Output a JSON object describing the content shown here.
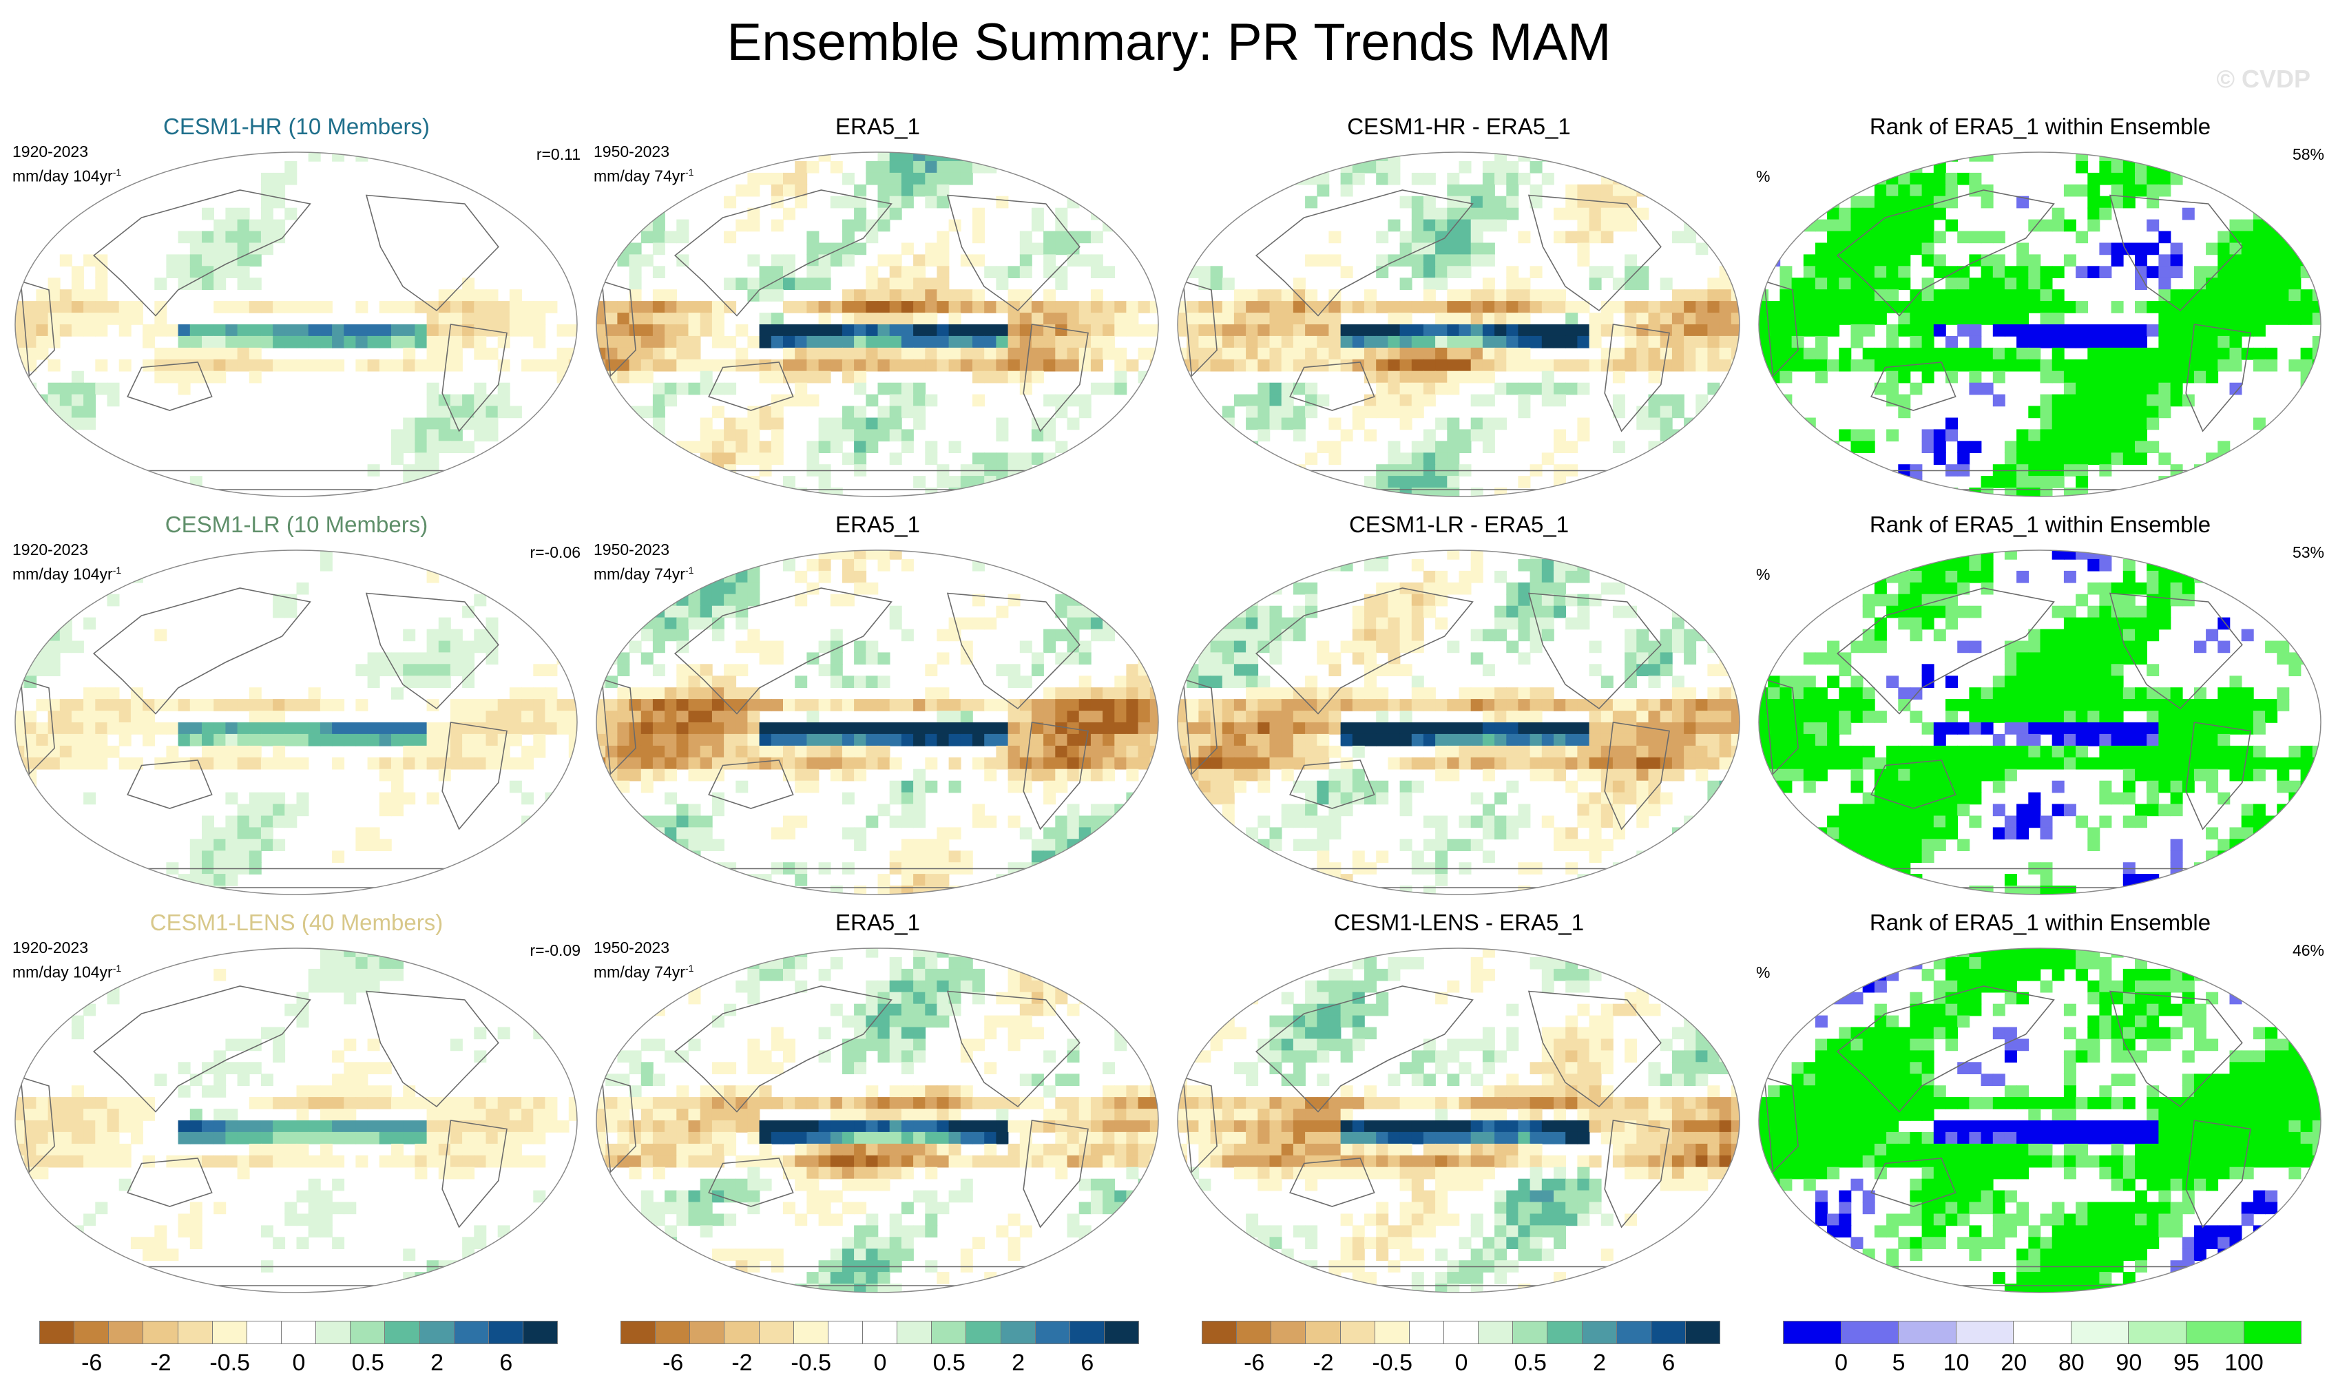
{
  "title": "Ensemble Summary: PR Trends MAM",
  "watermark": "© CVDP",
  "palettes": {
    "trend": [
      "#a65f1f",
      "#c4843c",
      "#d8a463",
      "#ecc98a",
      "#f5dfa9",
      "#fdf6cc",
      "#ffffff",
      "#ffffff",
      "#dcf5da",
      "#a6e3b5",
      "#5fbd9d",
      "#4d9aa4",
      "#2d72a6",
      "#0f4f8a",
      "#0a3453"
    ],
    "rank": [
      "#0000ee",
      "#6f6fee",
      "#b4b4f2",
      "#e2e2fa",
      "#ffffff",
      "#e6fbe6",
      "#b8f5b8",
      "#7af07a",
      "#00ee00"
    ]
  },
  "colorbars": [
    {
      "type": "trend",
      "labels": [
        "-6",
        "-2",
        "-0.5",
        "0",
        "0.5",
        "2",
        "6"
      ]
    },
    {
      "type": "trend",
      "labels": [
        "-6",
        "-2",
        "-0.5",
        "0",
        "0.5",
        "2",
        "6"
      ]
    },
    {
      "type": "trend",
      "labels": [
        "-6",
        "-2",
        "-0.5",
        "0",
        "0.5",
        "2",
        "6"
      ]
    },
    {
      "type": "rank",
      "labels": [
        "0",
        "5",
        "10",
        "20",
        "80",
        "90",
        "95",
        "100"
      ]
    }
  ],
  "rows": [
    {
      "ensemble": {
        "title": "CESM1-HR (10 Members)",
        "color": "#1f6f8b",
        "period": "1920-2023",
        "units": "mm/day 104yr",
        "unit_exp": "-1",
        "corr": "r=0.11"
      },
      "obs": {
        "title": "ERA5_1",
        "period": "1950-2023",
        "units": "mm/day 74yr",
        "unit_exp": "-1"
      },
      "diff": {
        "title": "CESM1-HR - ERA5_1"
      },
      "rank": {
        "title": "Rank of ERA5_1 within Ensemble",
        "unit": "%",
        "pct": "58%"
      }
    },
    {
      "ensemble": {
        "title": "CESM1-LR (10 Members)",
        "color": "#5f8f6a",
        "period": "1920-2023",
        "units": "mm/day 104yr",
        "unit_exp": "-1",
        "corr": "r=-0.06"
      },
      "obs": {
        "title": "ERA5_1",
        "period": "1950-2023",
        "units": "mm/day 74yr",
        "unit_exp": "-1"
      },
      "diff": {
        "title": "CESM1-LR - ERA5_1"
      },
      "rank": {
        "title": "Rank of ERA5_1 within Ensemble",
        "unit": "%",
        "pct": "53%"
      }
    },
    {
      "ensemble": {
        "title": "CESM1-LENS (40 Members)",
        "color": "#d8c88a",
        "period": "1920-2023",
        "units": "mm/day 104yr",
        "unit_exp": "-1",
        "corr": "r=-0.09"
      },
      "obs": {
        "title": "ERA5_1",
        "period": "1950-2023",
        "units": "mm/day 74yr",
        "unit_exp": "-1"
      },
      "diff": {
        "title": "CESM1-LENS - ERA5_1"
      },
      "rank": {
        "title": "Rank of ERA5_1 within Ensemble",
        "unit": "%",
        "pct": "46%"
      }
    }
  ]
}
